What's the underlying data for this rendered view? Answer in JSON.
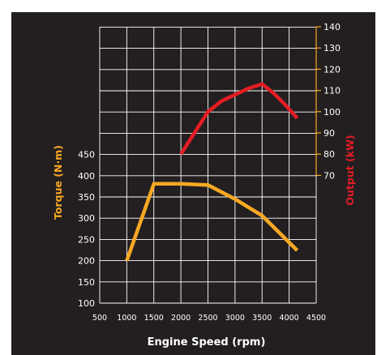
{
  "chart_data": {
    "type": "line",
    "title": "",
    "xlabel": "Engine Speed (rpm)",
    "ylabel_left": "Torque (N·m)",
    "ylabel_right": "Output (kW)",
    "xlim": [
      500,
      4500
    ],
    "x_ticks": [
      500,
      1000,
      1500,
      2000,
      2500,
      3000,
      3500,
      4000,
      4500
    ],
    "ylim_left": [
      100,
      450
    ],
    "y_ticks_left": [
      100,
      150,
      200,
      250,
      300,
      350,
      400,
      450
    ],
    "ylim_right": [
      70,
      140
    ],
    "y_ticks_right": [
      70,
      80,
      90,
      100,
      110,
      120,
      130,
      140
    ],
    "grid": true,
    "series": [
      {
        "name": "Torque (N·m)",
        "axis": "left",
        "color": "#f7a823",
        "x": [
          1000,
          1500,
          2000,
          2500,
          3000,
          3500,
          4150
        ],
        "y": [
          200,
          381,
          381,
          378,
          345,
          306,
          224
        ]
      },
      {
        "name": "Output (kW)",
        "axis": "right",
        "color": "#e31c24",
        "x": [
          2000,
          2250,
          2500,
          2750,
          3000,
          3250,
          3500,
          3700,
          3900,
          4150
        ],
        "y": [
          80,
          90,
          100,
          105,
          108,
          111,
          113,
          109,
          104,
          97
        ]
      }
    ]
  }
}
